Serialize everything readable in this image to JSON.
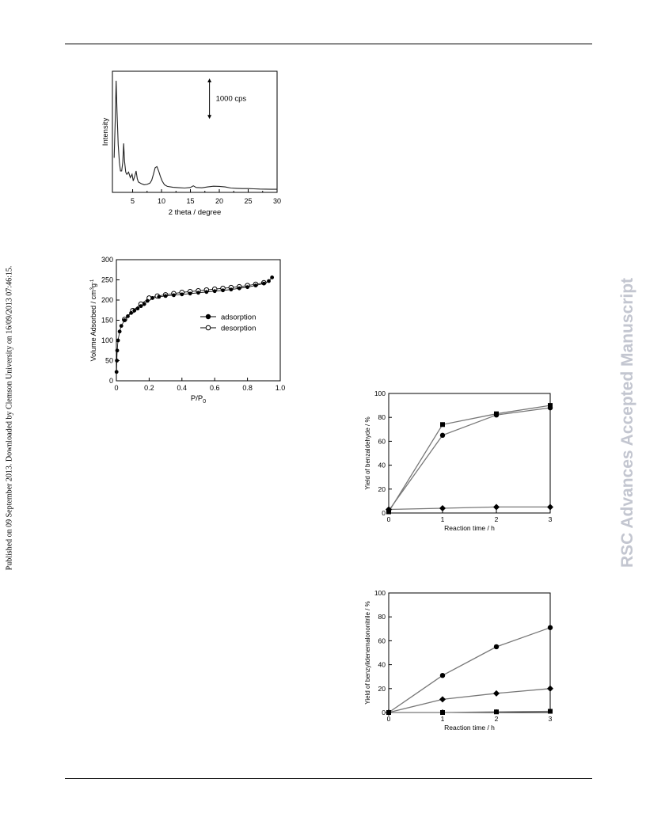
{
  "side_note": "Published on 09 September 2013. Downloaded by Clemson University on 16/09/2013 07:46:15.",
  "watermark": "RSC Advances Accepted Manuscript",
  "chart_data": [
    {
      "id": "xrd",
      "type": "line",
      "title": "",
      "xlabel": "2 theta / degree",
      "ylabel": "Intensity",
      "xlim": [
        1.5,
        30
      ],
      "ylim": [
        0,
        1000
      ],
      "xticks": [
        5,
        10,
        15,
        20,
        25,
        30
      ],
      "scale_bar_label": "1000 cps",
      "scale_bar_value": 1000,
      "series": [
        {
          "x": [
            1.8,
            2.0,
            2.15,
            2.3,
            2.5,
            2.7,
            2.9,
            3.1,
            3.3,
            3.45,
            3.6,
            3.8,
            4.0,
            4.3,
            4.6,
            4.9,
            5.1,
            5.4,
            5.6,
            5.8,
            6.0,
            6.5,
            7.0,
            7.5,
            8.0,
            8.3,
            8.6,
            8.9,
            9.2,
            9.5,
            9.8,
            10.1,
            10.5,
            11.0,
            12.0,
            13.0,
            14.0,
            15.0,
            15.5,
            16.0,
            17.0,
            18.0,
            19.0,
            20.0,
            21.0,
            22.0,
            23.0,
            24.0,
            25.0,
            26.0,
            27.0,
            28.0,
            29.0,
            30.0
          ],
          "y": [
            300,
            650,
            1000,
            720,
            420,
            260,
            180,
            180,
            260,
            430,
            270,
            170,
            150,
            170,
            120,
            150,
            90,
            140,
            180,
            110,
            80,
            65,
            55,
            58,
            70,
            95,
            150,
            210,
            220,
            180,
            130,
            90,
            55,
            40,
            32,
            28,
            25,
            30,
            45,
            30,
            27,
            35,
            42,
            40,
            35,
            25,
            22,
            20,
            20,
            18,
            16,
            15,
            14,
            14
          ]
        }
      ]
    },
    {
      "id": "isotherm",
      "type": "scatter",
      "title": "",
      "xlabel": "P/P",
      "xlabel_sub": "0",
      "ylabel": "Volume Adsorbed / cm",
      "ylabel_sup": "3",
      "ylabel_tail": "g",
      "ylabel_tail_sup": "-1",
      "xlim": [
        0,
        1.0
      ],
      "ylim": [
        0,
        300
      ],
      "xticks": [
        "0",
        "0.2",
        "0.4",
        "0.6",
        "0.8",
        "1.0"
      ],
      "yticks": [
        "0",
        "50",
        "100",
        "150",
        "200",
        "250",
        "300"
      ],
      "legend_position": "right",
      "series": [
        {
          "name": "adsorption",
          "marker": "filled-circle",
          "x": [
            0.001,
            0.003,
            0.005,
            0.01,
            0.02,
            0.03,
            0.05,
            0.07,
            0.09,
            0.11,
            0.13,
            0.15,
            0.17,
            0.19,
            0.22,
            0.26,
            0.3,
            0.35,
            0.4,
            0.45,
            0.5,
            0.55,
            0.6,
            0.65,
            0.7,
            0.75,
            0.8,
            0.85,
            0.9,
            0.93,
            0.95
          ],
          "y": [
            22,
            50,
            75,
            100,
            122,
            136,
            150,
            160,
            168,
            174,
            179,
            185,
            190,
            198,
            205,
            208,
            210,
            212,
            214,
            216,
            218,
            220,
            222,
            224,
            226,
            229,
            232,
            236,
            241,
            247,
            256
          ]
        },
        {
          "name": "desorption",
          "marker": "open-circle",
          "x": [
            0.9,
            0.85,
            0.8,
            0.75,
            0.7,
            0.65,
            0.6,
            0.55,
            0.5,
            0.45,
            0.4,
            0.35,
            0.3,
            0.25,
            0.2,
            0.15,
            0.1,
            0.05
          ],
          "y": [
            243,
            239,
            236,
            233,
            231,
            229,
            227,
            225,
            223,
            221,
            219,
            216,
            213,
            210,
            205,
            190,
            174,
            152
          ]
        }
      ]
    },
    {
      "id": "benzaldehyde",
      "type": "line",
      "title": "",
      "xlabel": "Reaction time / h",
      "ylabel": "Yield of benzaldehyde  / %",
      "xlim": [
        0,
        3
      ],
      "ylim": [
        0,
        100
      ],
      "xticks": [
        "0",
        "1",
        "2",
        "3"
      ],
      "yticks": [
        "0",
        "20",
        "40",
        "60",
        "80",
        "100"
      ],
      "series": [
        {
          "marker": "square",
          "x": [
            0,
            1,
            2,
            3
          ],
          "y": [
            1,
            74,
            83,
            90
          ]
        },
        {
          "marker": "circle",
          "x": [
            0,
            1,
            2,
            3
          ],
          "y": [
            2,
            65,
            82,
            88
          ]
        },
        {
          "marker": "diamond",
          "x": [
            0,
            1,
            2,
            3
          ],
          "y": [
            3,
            4,
            5,
            5
          ]
        }
      ]
    },
    {
      "id": "benzylidenemalononitrile",
      "type": "line",
      "title": "",
      "xlabel": "Reaction time / h",
      "ylabel": "Yield of benzylidenemalononitrile / %",
      "xlim": [
        0,
        3
      ],
      "ylim": [
        0,
        100
      ],
      "xticks": [
        "0",
        "1",
        "2",
        "3"
      ],
      "yticks": [
        "0",
        "20",
        "40",
        "60",
        "80",
        "100"
      ],
      "series": [
        {
          "marker": "circle",
          "x": [
            0,
            1,
            2,
            3
          ],
          "y": [
            0,
            31,
            55,
            71
          ]
        },
        {
          "marker": "diamond",
          "x": [
            0,
            1,
            2,
            3
          ],
          "y": [
            0,
            11,
            16,
            20
          ]
        },
        {
          "marker": "square",
          "x": [
            0,
            1,
            2,
            3
          ],
          "y": [
            0,
            0,
            0.5,
            1
          ]
        }
      ]
    }
  ]
}
